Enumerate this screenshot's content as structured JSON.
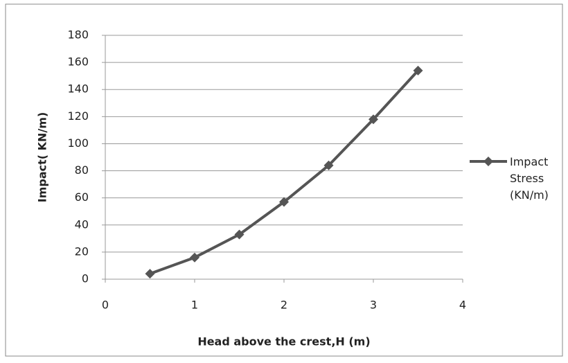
{
  "chart_data": {
    "type": "line",
    "x": [
      0.5,
      1,
      1.5,
      2,
      2.5,
      3,
      3.5
    ],
    "series": [
      {
        "name": "Impact Stress (KN/m)",
        "color": "#555555",
        "values": [
          4,
          16,
          33,
          57,
          84,
          118,
          154
        ]
      }
    ],
    "xlabel": "Head above the crest,H (m)",
    "ylabel": "Impact( KN/m)",
    "xlim": [
      0,
      4
    ],
    "xticks": [
      0,
      1,
      2,
      3,
      4
    ],
    "ylim": [
      0,
      180
    ],
    "yticks": [
      0,
      20,
      40,
      60,
      80,
      100,
      120,
      140,
      160,
      180
    ],
    "grid": true,
    "legend": "right"
  }
}
